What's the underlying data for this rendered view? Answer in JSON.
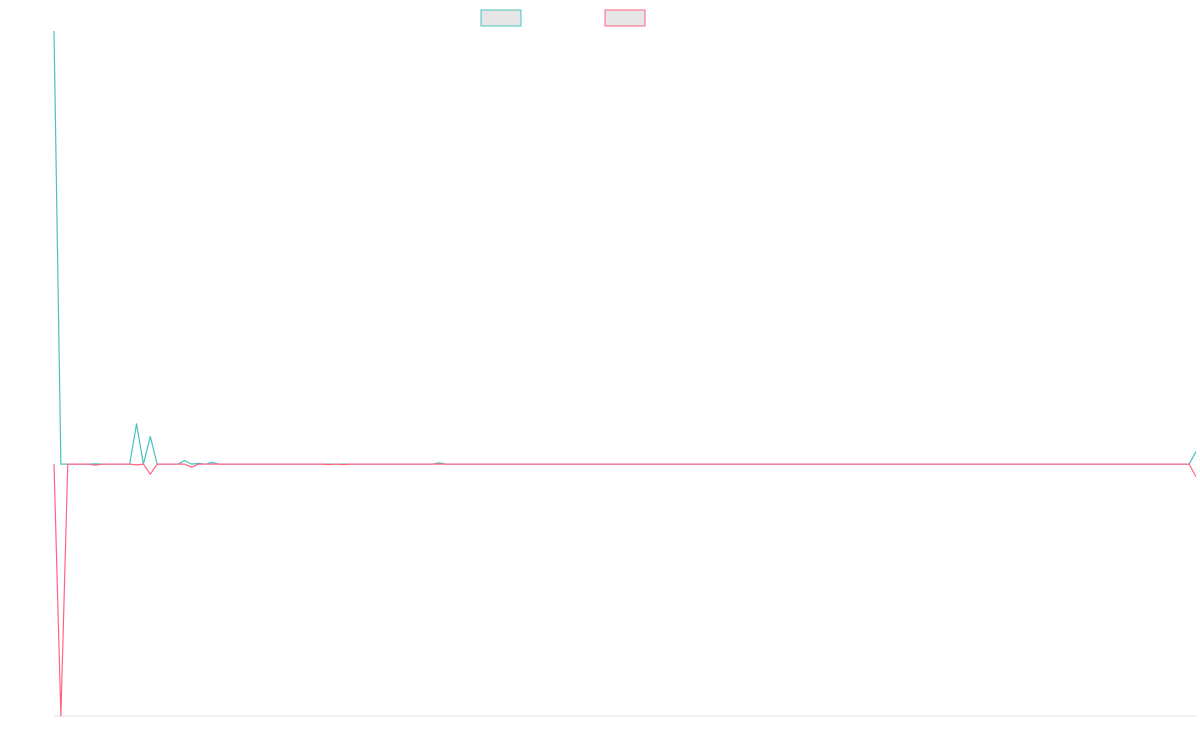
{
  "chart_data": {
    "type": "line",
    "title": "",
    "xlabel": "",
    "ylabel": "",
    "grid": false,
    "legend_placement": "top-center",
    "x": [
      0,
      1,
      2,
      3,
      4,
      5,
      6,
      7,
      8,
      9,
      10,
      11,
      12,
      13,
      14,
      15,
      16,
      17,
      18,
      19,
      20,
      21,
      22,
      23,
      24,
      25,
      26,
      27,
      28,
      29,
      30,
      31,
      32,
      33,
      34,
      35,
      36,
      37,
      38,
      39,
      40,
      41,
      42,
      43,
      44,
      45,
      46,
      47,
      48,
      49,
      50,
      51,
      52,
      53,
      54,
      55,
      56,
      57,
      58,
      59,
      60,
      61,
      62,
      63,
      64,
      65,
      66,
      67,
      68,
      69,
      70,
      71,
      72,
      73,
      74,
      75,
      76,
      77,
      78,
      79,
      80,
      81,
      82,
      83,
      84,
      85,
      86,
      87,
      88,
      89,
      90,
      91,
      92,
      93,
      94,
      95,
      96,
      97,
      98,
      99,
      100,
      101,
      102,
      103,
      104,
      105,
      106,
      107,
      108,
      109,
      110,
      111,
      112,
      113,
      114,
      115,
      116,
      117,
      118,
      119,
      120,
      121,
      122,
      123,
      124,
      125,
      126,
      127,
      128,
      129,
      130,
      131,
      132,
      133,
      134,
      135,
      136,
      137,
      138,
      139,
      140,
      141,
      142,
      143,
      144,
      145,
      146,
      147,
      148,
      149,
      150,
      151,
      152,
      153,
      154,
      155,
      156,
      157,
      158,
      159,
      160,
      161,
      162,
      163,
      164,
      165,
      166
    ],
    "ylim": [
      -100,
      170
    ],
    "series": [
      {
        "color": "#4bc0c0",
        "values": [
          172,
          0,
          0,
          0,
          0,
          0,
          0.1,
          0,
          0,
          0,
          0,
          0,
          16,
          0,
          11,
          0,
          0,
          0,
          0,
          1.4,
          0,
          0.3,
          0,
          0.7,
          0,
          0,
          0,
          0,
          0,
          0,
          0,
          0,
          0,
          0,
          0,
          0,
          0,
          0,
          0,
          0,
          0,
          0,
          0,
          0,
          0,
          0,
          0,
          0,
          0,
          0,
          0,
          0,
          0,
          0,
          0,
          0,
          0.5,
          0,
          0,
          0,
          0,
          0,
          0,
          0,
          0,
          0,
          0,
          0,
          0,
          0,
          0,
          0,
          0,
          0,
          0,
          0,
          0,
          0,
          0,
          0,
          0,
          0,
          0,
          0,
          0,
          0,
          0,
          0,
          0,
          0,
          0,
          0,
          0,
          0,
          0,
          0,
          0,
          0,
          0,
          0,
          0,
          0,
          0,
          0,
          0,
          0,
          0,
          0,
          0,
          0,
          0,
          0,
          0,
          0,
          0,
          0,
          0,
          0,
          0,
          0,
          0,
          0,
          0,
          0,
          0,
          0,
          0,
          0,
          0,
          0,
          0,
          0,
          0,
          0,
          0,
          0,
          0,
          0,
          0,
          0,
          0,
          0,
          0,
          0,
          0,
          0,
          0,
          0,
          0,
          0,
          0,
          0,
          0,
          0,
          0,
          0,
          0,
          0,
          0,
          0,
          0,
          0,
          0,
          0,
          0,
          0,
          5
        ]
      },
      {
        "color": "#ff6384",
        "values": [
          0,
          -100,
          0,
          0,
          0,
          0,
          -0.4,
          0,
          0,
          0,
          0,
          0,
          -0.3,
          0,
          -4,
          0,
          0,
          0,
          0,
          0,
          -1.2,
          0,
          0,
          0,
          0,
          0,
          0,
          0,
          0,
          0,
          0,
          0,
          0,
          0,
          0,
          0,
          0,
          0,
          0,
          0,
          -0.2,
          0,
          -0.2,
          0,
          0,
          0,
          0,
          0,
          0,
          0,
          0,
          0,
          0,
          0,
          0,
          0,
          0,
          0,
          0,
          0,
          0,
          0,
          0,
          0,
          0,
          0,
          0,
          0,
          0,
          0,
          0,
          0,
          0,
          0,
          0,
          0,
          0,
          0,
          0,
          0,
          0,
          0,
          0,
          0,
          0,
          0,
          0,
          0,
          0,
          0,
          0,
          0,
          0,
          0,
          0,
          0,
          0,
          0,
          0,
          0,
          0,
          0,
          0,
          0,
          0,
          0,
          0,
          0,
          0,
          0,
          0,
          0,
          0,
          0,
          0,
          0,
          0,
          0,
          0,
          0,
          0,
          0,
          0,
          0,
          0,
          0,
          0,
          0,
          0,
          0,
          0,
          0,
          0,
          0,
          0,
          0,
          0,
          0,
          0,
          0,
          0,
          0,
          0,
          0,
          0,
          0,
          0,
          0,
          0,
          0,
          0,
          0,
          0,
          0,
          0,
          0,
          0,
          0,
          0,
          0,
          0,
          0,
          0,
          0,
          0,
          0,
          -5
        ]
      }
    ]
  }
}
